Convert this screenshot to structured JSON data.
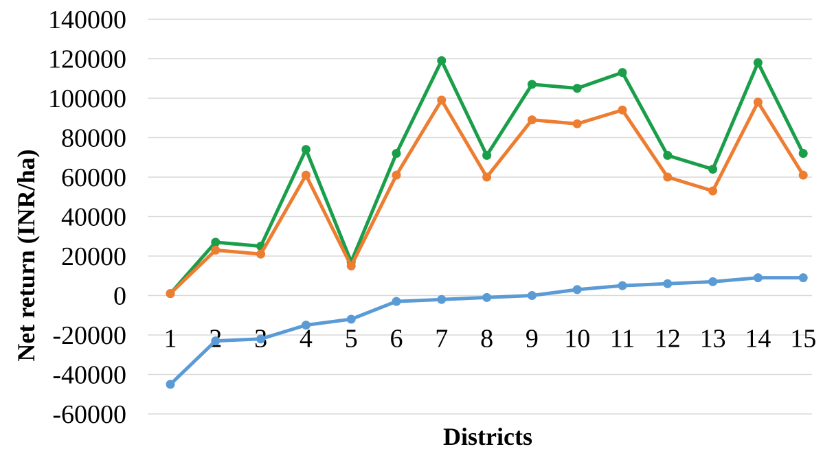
{
  "chart_data": {
    "type": "line",
    "title": "",
    "xlabel": "Districts",
    "ylabel": "Net return (INR/ha)",
    "x": [
      1,
      2,
      3,
      4,
      5,
      6,
      7,
      8,
      9,
      10,
      11,
      12,
      13,
      14,
      15
    ],
    "ylim": [
      -60000,
      140000
    ],
    "yticks": [
      -60000,
      -40000,
      -20000,
      0,
      20000,
      40000,
      60000,
      80000,
      100000,
      120000,
      140000
    ],
    "grid": true,
    "legend": "none",
    "series": [
      {
        "color": "#1a9e4a",
        "values": [
          1000,
          27000,
          25000,
          74000,
          17000,
          72000,
          119000,
          71000,
          107000,
          105000,
          113000,
          71000,
          64000,
          118000,
          72000
        ]
      },
      {
        "color": "#ed7d31",
        "values": [
          1000,
          23000,
          21000,
          61000,
          15000,
          61000,
          99000,
          60000,
          89000,
          87000,
          94000,
          60000,
          53000,
          98000,
          61000
        ]
      },
      {
        "color": "#5b9bd5",
        "values": [
          -45000,
          -23000,
          -22000,
          -15000,
          -12000,
          -3000,
          -2000,
          -1000,
          0,
          3000,
          5000,
          6000,
          7000,
          9000,
          9000
        ]
      }
    ]
  }
}
